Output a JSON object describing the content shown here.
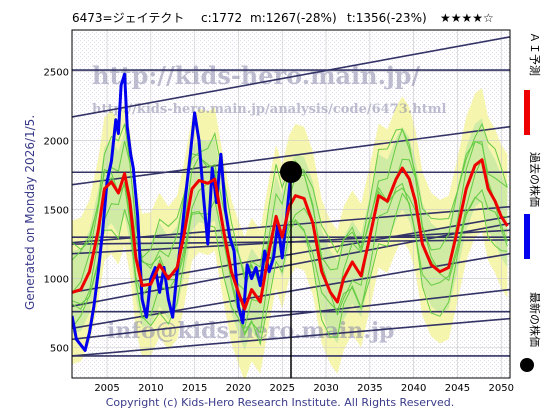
{
  "header": {
    "code_name": "6473=ジェイテクト",
    "current": "c:1772",
    "m_value": "m:1267(-28%)",
    "t_value": "t:1356(-23%)",
    "rating": "★★★★☆"
  },
  "watermark": {
    "url_large": "http://kids-hero.main.jp/",
    "url_small": "http://kids-hero.main.jp/analysis/code/6473.html",
    "email": "info@kids-hero.main.jp"
  },
  "generated_label": "Generated on Monday 2026/1/5.",
  "legend": {
    "forecast": "ＡＩ予測",
    "past": "過去の株価",
    "latest": "最新の株価"
  },
  "footer": "Copyright (c) Kids-Hero Research Institute. All Rights Reserved.",
  "colors": {
    "forecast": "#ee0000",
    "past": "#0000ee",
    "band_fill": "#f4f4a0",
    "green_band": "#66cc44",
    "trend_lines": "#333366",
    "watermark": "#8a8aaa"
  },
  "chart_data": {
    "type": "line",
    "xlim": [
      2001,
      2051
    ],
    "ylim": [
      280,
      2800
    ],
    "x_ticks": [
      2005,
      2010,
      2015,
      2020,
      2025,
      2030,
      2035,
      2040,
      2045,
      2050
    ],
    "y_ticks": [
      500,
      1000,
      1500,
      2000,
      2500
    ],
    "grid": true,
    "latest_point": {
      "x": 2026.0,
      "y": 1772
    },
    "series": [
      {
        "role": "past",
        "points": [
          [
            2001.0,
            730
          ],
          [
            2001.5,
            560
          ],
          [
            2002.0,
            520
          ],
          [
            2002.5,
            480
          ],
          [
            2003.0,
            610
          ],
          [
            2003.5,
            800
          ],
          [
            2004.0,
            1050
          ],
          [
            2004.5,
            1350
          ],
          [
            2005.0,
            1700
          ],
          [
            2005.5,
            1850
          ],
          [
            2006.0,
            2150
          ],
          [
            2006.3,
            2050
          ],
          [
            2006.6,
            2400
          ],
          [
            2007.0,
            2480
          ],
          [
            2007.3,
            2100
          ],
          [
            2007.7,
            1900
          ],
          [
            2008.0,
            1800
          ],
          [
            2008.5,
            1450
          ],
          [
            2009.0,
            850
          ],
          [
            2009.5,
            720
          ],
          [
            2010.0,
            1000
          ],
          [
            2010.5,
            1080
          ],
          [
            2011.0,
            900
          ],
          [
            2011.5,
            1080
          ],
          [
            2012.0,
            850
          ],
          [
            2012.5,
            720
          ],
          [
            2013.0,
            1050
          ],
          [
            2013.5,
            1300
          ],
          [
            2014.0,
            1620
          ],
          [
            2014.5,
            1900
          ],
          [
            2015.0,
            2200
          ],
          [
            2015.5,
            2000
          ],
          [
            2016.0,
            1600
          ],
          [
            2016.5,
            1250
          ],
          [
            2017.0,
            1800
          ],
          [
            2017.5,
            1550
          ],
          [
            2018.0,
            1900
          ],
          [
            2018.5,
            1500
          ],
          [
            2019.0,
            1300
          ],
          [
            2019.5,
            1200
          ],
          [
            2020.0,
            800
          ],
          [
            2020.5,
            680
          ],
          [
            2021.0,
            1100
          ],
          [
            2021.5,
            1000
          ],
          [
            2022.0,
            1080
          ],
          [
            2022.5,
            950
          ],
          [
            2023.0,
            1200
          ],
          [
            2023.5,
            1050
          ],
          [
            2024.0,
            1150
          ],
          [
            2024.5,
            1400
          ],
          [
            2025.0,
            1150
          ],
          [
            2025.5,
            1450
          ],
          [
            2026.0,
            1772
          ]
        ]
      },
      {
        "role": "forecast",
        "points": [
          [
            2001.0,
            900
          ],
          [
            2002.0,
            920
          ],
          [
            2003.0,
            1050
          ],
          [
            2004.0,
            1350
          ],
          [
            2004.7,
            1650
          ],
          [
            2005.5,
            1700
          ],
          [
            2006.3,
            1620
          ],
          [
            2007.0,
            1760
          ],
          [
            2007.6,
            1560
          ],
          [
            2008.3,
            1150
          ],
          [
            2009.0,
            950
          ],
          [
            2010.0,
            960
          ],
          [
            2011.0,
            1100
          ],
          [
            2012.0,
            1000
          ],
          [
            2013.0,
            1080
          ],
          [
            2013.8,
            1320
          ],
          [
            2014.7,
            1650
          ],
          [
            2015.5,
            1710
          ],
          [
            2016.5,
            1690
          ],
          [
            2017.3,
            1720
          ],
          [
            2018.3,
            1350
          ],
          [
            2019.2,
            1050
          ],
          [
            2020.0,
            900
          ],
          [
            2020.7,
            780
          ],
          [
            2021.5,
            920
          ],
          [
            2022.5,
            830
          ],
          [
            2023.5,
            1200
          ],
          [
            2024.3,
            1450
          ],
          [
            2025.0,
            1300
          ],
          [
            2025.8,
            1520
          ],
          [
            2026.5,
            1600
          ],
          [
            2027.5,
            1580
          ],
          [
            2028.5,
            1400
          ],
          [
            2029.5,
            1050
          ],
          [
            2030.5,
            900
          ],
          [
            2031.3,
            830
          ],
          [
            2032.0,
            1000
          ],
          [
            2033.0,
            1120
          ],
          [
            2034.0,
            1020
          ],
          [
            2035.0,
            1300
          ],
          [
            2036.0,
            1600
          ],
          [
            2037.0,
            1560
          ],
          [
            2038.0,
            1720
          ],
          [
            2038.7,
            1800
          ],
          [
            2039.5,
            1720
          ],
          [
            2040.2,
            1560
          ],
          [
            2041.0,
            1250
          ],
          [
            2042.0,
            1100
          ],
          [
            2043.0,
            1050
          ],
          [
            2044.0,
            1080
          ],
          [
            2045.0,
            1350
          ],
          [
            2046.0,
            1650
          ],
          [
            2047.0,
            1820
          ],
          [
            2047.8,
            1860
          ],
          [
            2048.5,
            1650
          ],
          [
            2049.3,
            1560
          ],
          [
            2050.0,
            1450
          ],
          [
            2050.7,
            1380
          ]
        ]
      }
    ],
    "trend_lines": [
      [
        [
          2001,
          2170
        ],
        [
          2051,
          2750
        ]
      ],
      [
        [
          2001,
          1770
        ],
        [
          2051,
          1770
        ]
      ],
      [
        [
          2001,
          1680
        ],
        [
          2051,
          2100
        ]
      ],
      [
        [
          2001,
          1250
        ],
        [
          2051,
          1280
        ]
      ],
      [
        [
          2001,
          1260
        ],
        [
          2051,
          1520
        ]
      ],
      [
        [
          2001,
          1180
        ],
        [
          2051,
          1350
        ]
      ],
      [
        [
          2001,
          900
        ],
        [
          2051,
          1450
        ]
      ],
      [
        [
          2001,
          800
        ],
        [
          2051,
          1400
        ]
      ],
      [
        [
          2001,
          760
        ],
        [
          2051,
          760
        ]
      ],
      [
        [
          2001,
          640
        ],
        [
          2051,
          1180
        ]
      ],
      [
        [
          2001,
          560
        ],
        [
          2051,
          920
        ]
      ],
      [
        [
          2001,
          440
        ],
        [
          2051,
          440
        ]
      ],
      [
        [
          2001,
          440
        ],
        [
          2051,
          710
        ]
      ],
      [
        [
          2001,
          2510
        ],
        [
          2051,
          2510
        ]
      ],
      [
        [
          2001,
          1300
        ],
        [
          2051,
          1300
        ]
      ]
    ]
  }
}
